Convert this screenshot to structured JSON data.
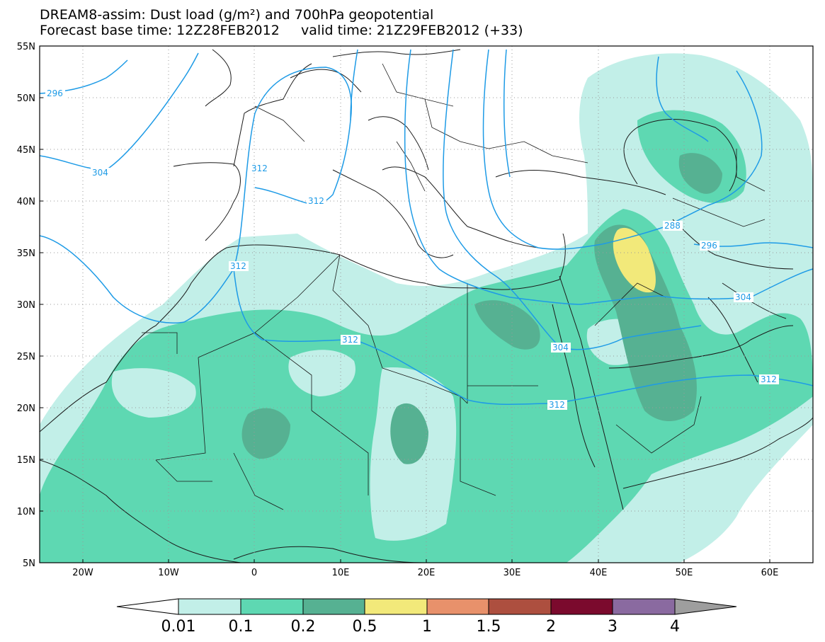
{
  "title": {
    "line1": "DREAM8-assim: Dust load (g/m²) and 700hPa geopotential",
    "line2": "Forecast base time: 12Z28FEB2012     valid time: 21Z29FEB2012 (+33)"
  },
  "axes": {
    "lat_labels": [
      "55N",
      "50N",
      "45N",
      "40N",
      "35N",
      "30N",
      "25N",
      "20N",
      "15N",
      "10N",
      "5N"
    ],
    "lon_labels": [
      "20W",
      "10W",
      "0",
      "10E",
      "20E",
      "30E",
      "40E",
      "50E",
      "60E"
    ]
  },
  "contour_labels": [
    "296",
    "304",
    "312",
    "312",
    "312",
    "312",
    "288",
    "296",
    "304",
    "304",
    "312",
    "312"
  ],
  "colorbar": {
    "tick_labels": [
      "0.01",
      "0.1",
      "0.2",
      "0.5",
      "1",
      "1.5",
      "2",
      "3",
      "4"
    ],
    "colors": [
      "#ffffff",
      "#c2efe8",
      "#5ed8b2",
      "#56b192",
      "#f2e97a",
      "#e8916b",
      "#ad4f3f",
      "#7b0a2d",
      "#8a6aa0",
      "#9e9e9e"
    ]
  },
  "palette": {
    "contour_line": "#1e9be6",
    "coast_line": "#1a1a1a",
    "grid": "#9a9a9a"
  }
}
